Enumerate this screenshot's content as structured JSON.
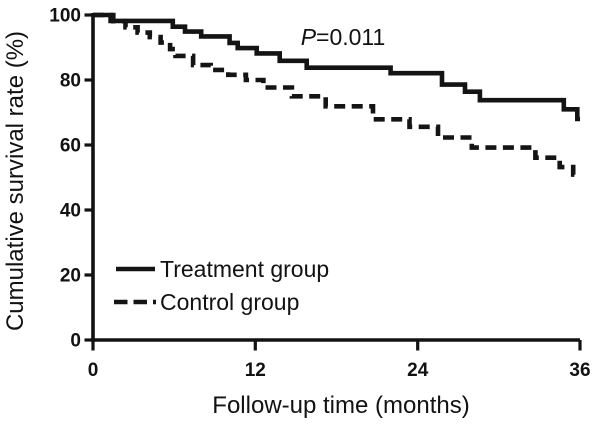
{
  "figure": {
    "background": "#ffffff",
    "ink": "#121212",
    "curve_color": "#141414"
  },
  "annotation": {
    "p_italic": "P",
    "p_rest": "=0.011",
    "full": "P=0.011"
  },
  "chart_data": {
    "type": "line",
    "subtype": "kaplan_meier_step",
    "title": "",
    "xlabel": "Follow-up time (months)",
    "ylabel": "Cumulative survival rate (%)",
    "xlim": [
      0,
      36
    ],
    "ylim": [
      0,
      100
    ],
    "x_ticks": [
      0,
      12,
      24,
      36
    ],
    "y_ticks": [
      0,
      20,
      40,
      60,
      80,
      100
    ],
    "grid": false,
    "legend_position": "inside-lower-left",
    "annotation": "P=0.011",
    "series": [
      {
        "name": "Treatment group",
        "id": "treatment-curve",
        "line": "solid",
        "points": [
          [
            0,
            100
          ],
          [
            1.3,
            98.2
          ],
          [
            5.9,
            96.4
          ],
          [
            6.8,
            94.9
          ],
          [
            8.0,
            93.4
          ],
          [
            10.1,
            91.4
          ],
          [
            10.7,
            89.8
          ],
          [
            12.1,
            88.2
          ],
          [
            13.8,
            85.9
          ],
          [
            15.8,
            83.8
          ],
          [
            22.0,
            82.1
          ],
          [
            25.8,
            78.6
          ],
          [
            27.5,
            76.4
          ],
          [
            28.6,
            73.8
          ],
          [
            34.8,
            71.0
          ],
          [
            35.8,
            68.0
          ],
          [
            36,
            68.0
          ]
        ]
      },
      {
        "name": "Control group",
        "id": "control-curve",
        "line": "dashed",
        "points": [
          [
            0,
            100
          ],
          [
            1.5,
            98.1
          ],
          [
            2.4,
            96.2
          ],
          [
            3.3,
            94.6
          ],
          [
            4.2,
            93.2
          ],
          [
            5.0,
            91.5
          ],
          [
            5.7,
            89.5
          ],
          [
            6.1,
            87.4
          ],
          [
            7.4,
            84.6
          ],
          [
            8.7,
            83.1
          ],
          [
            10.0,
            81.6
          ],
          [
            11.3,
            80.0
          ],
          [
            12.6,
            77.7
          ],
          [
            14.7,
            75.0
          ],
          [
            17.2,
            71.9
          ],
          [
            20.7,
            67.9
          ],
          [
            23.4,
            65.6
          ],
          [
            25.5,
            62.3
          ],
          [
            28.0,
            59.2
          ],
          [
            32.7,
            56.1
          ],
          [
            34.5,
            53.2
          ],
          [
            35.5,
            50.9
          ],
          [
            36,
            50.9
          ]
        ]
      }
    ]
  }
}
